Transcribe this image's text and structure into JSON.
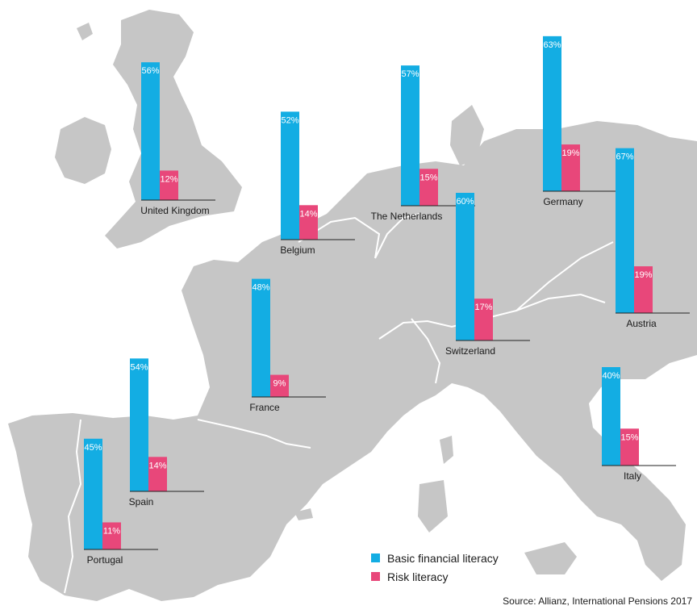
{
  "chart_data": {
    "type": "bar",
    "categories": [
      "United Kingdom",
      "Belgium",
      "The Netherlands",
      "Germany",
      "Switzerland",
      "Austria",
      "France",
      "Spain",
      "Portugal",
      "Italy"
    ],
    "series": [
      {
        "name": "Basic financial literacy",
        "values": [
          56,
          52,
          57,
          63,
          60,
          67,
          48,
          54,
          45,
          40
        ],
        "color": "#13ade3"
      },
      {
        "name": "Risk literacy",
        "values": [
          12,
          14,
          15,
          19,
          17,
          19,
          9,
          14,
          11,
          15
        ],
        "color": "#e8477a"
      }
    ],
    "value_suffix": "%",
    "source": "Source: Allianz, International Pensions 2017",
    "map_fill": "#c6c6c6",
    "border_color": "#ffffff"
  }
}
